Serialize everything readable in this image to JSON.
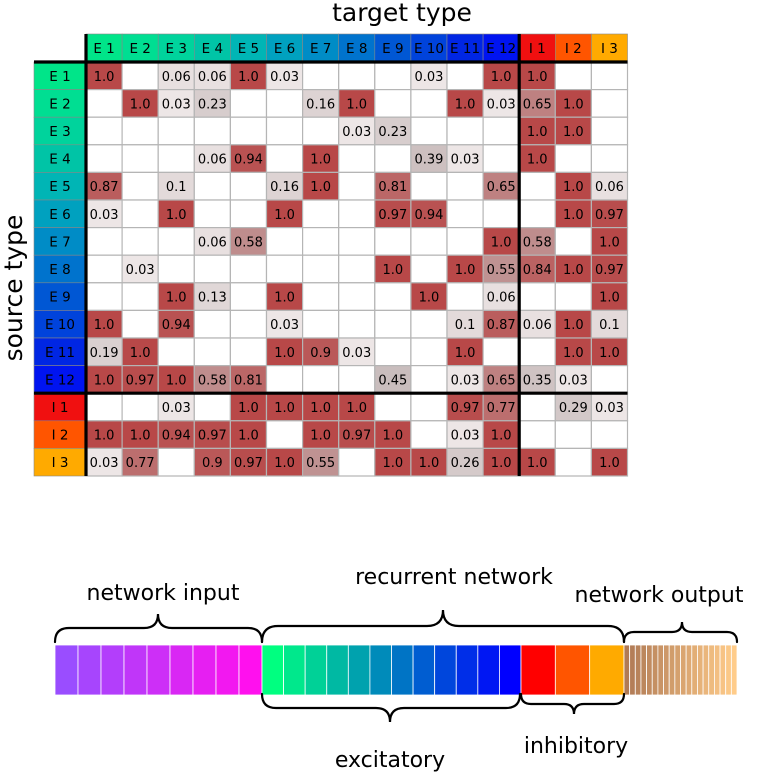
{
  "matrix": {
    "x_title": "target type",
    "y_title": "source type",
    "target_labels": [
      "E 1",
      "E 2",
      "E 3",
      "E 4",
      "E 5",
      "E 6",
      "E 7",
      "E 8",
      "E 9",
      "E 10",
      "E 11",
      "E 12",
      "I 1",
      "I 2",
      "I 3"
    ],
    "source_labels": [
      "E 1",
      "E 2",
      "E 3",
      "E 4",
      "E 5",
      "E 6",
      "E 7",
      "E 8",
      "E 9",
      "E 10",
      "E 11",
      "E 12",
      "I 1",
      "I 2",
      "I 3"
    ],
    "type_colors": [
      "#00e589",
      "#00de92",
      "#00d39c",
      "#00c4a6",
      "#00b5b5",
      "#00a1bf",
      "#008cc6",
      "#0073cd",
      "#0057d4",
      "#0043db",
      "#0026e3",
      "#0014f0",
      "#f01010",
      "#ff5500",
      "#ffaa00"
    ],
    "high_color": "#b84848",
    "low_color": "#ffffff",
    "values": [
      [
        "1.0",
        "",
        "0.06",
        "0.06",
        "1.0",
        "0.03",
        "",
        "",
        "",
        "0.03",
        "",
        "1.0",
        "1.0",
        "",
        ""
      ],
      [
        "",
        "1.0",
        "0.03",
        "0.23",
        "",
        "",
        "0.16",
        "1.0",
        "",
        "",
        "1.0",
        "0.03",
        "0.65",
        "1.0",
        ""
      ],
      [
        "",
        "",
        "",
        "",
        "",
        "",
        "",
        "0.03",
        "0.23",
        "",
        "",
        "",
        "1.0",
        "1.0",
        ""
      ],
      [
        "",
        "",
        "",
        "0.06",
        "0.94",
        "",
        "1.0",
        "",
        "",
        "0.39",
        "0.03",
        "",
        "1.0",
        "",
        ""
      ],
      [
        "0.87",
        "",
        "0.1",
        "",
        "",
        "0.16",
        "1.0",
        "",
        "0.81",
        "",
        "",
        "0.65",
        "",
        "1.0",
        "0.06"
      ],
      [
        "0.03",
        "",
        "1.0",
        "",
        "",
        "1.0",
        "",
        "",
        "0.97",
        "0.94",
        "",
        "",
        "",
        "1.0",
        "0.97"
      ],
      [
        "",
        "",
        "",
        "0.06",
        "0.58",
        "",
        "",
        "",
        "",
        "",
        "",
        "1.0",
        "0.58",
        "",
        "1.0"
      ],
      [
        "",
        "0.03",
        "",
        "",
        "",
        "",
        "",
        "",
        "1.0",
        "",
        "1.0",
        "0.55",
        "0.84",
        "1.0",
        "0.97"
      ],
      [
        "",
        "",
        "1.0",
        "0.13",
        "",
        "1.0",
        "",
        "",
        "",
        "1.0",
        "",
        "0.06",
        "",
        "",
        "1.0"
      ],
      [
        "1.0",
        "",
        "0.94",
        "",
        "",
        "0.03",
        "",
        "",
        "",
        "",
        "0.1",
        "0.87",
        "0.06",
        "1.0",
        "0.1"
      ],
      [
        "0.19",
        "1.0",
        "",
        "",
        "",
        "1.0",
        "0.9",
        "0.03",
        "",
        "",
        "1.0",
        "",
        "",
        "1.0",
        "1.0"
      ],
      [
        "1.0",
        "0.97",
        "1.0",
        "0.58",
        "0.81",
        "",
        "",
        "",
        "0.45",
        "",
        "0.03",
        "0.65",
        "0.35",
        "0.03",
        ""
      ],
      [
        "",
        "",
        "0.03",
        "",
        "1.0",
        "1.0",
        "1.0",
        "1.0",
        "",
        "",
        "0.97",
        "0.77",
        "",
        "0.29",
        "0.03"
      ],
      [
        "1.0",
        "1.0",
        "0.94",
        "0.97",
        "1.0",
        "",
        "1.0",
        "0.97",
        "1.0",
        "",
        "0.03",
        "1.0",
        "",
        "",
        ""
      ],
      [
        "0.03",
        "0.77",
        "",
        "0.9",
        "0.97",
        "1.0",
        "0.55",
        "",
        "1.0",
        "1.0",
        "0.26",
        "1.0",
        "1.0",
        "",
        "1.0"
      ]
    ]
  },
  "neurons": {
    "input_color_start": "#9a4dff",
    "input_color_end": "#ff10ee",
    "excitatory_color_start": "#00ff80",
    "excitatory_color_end": "#0000ff",
    "inhibitory_colors": [
      "#ff0000",
      "#ff5500",
      "#ffaa00"
    ],
    "output_color_start": "#b07a55",
    "output_color_end": "#ffcc8a",
    "input_count": 9,
    "excitatory_count": 12,
    "output_count": 20
  },
  "groups": {
    "network_input": "network input",
    "recurrent_network": "recurrent network",
    "network_output": "network output",
    "excitatory": "excitatory",
    "inhibitory": "inhibitory"
  }
}
